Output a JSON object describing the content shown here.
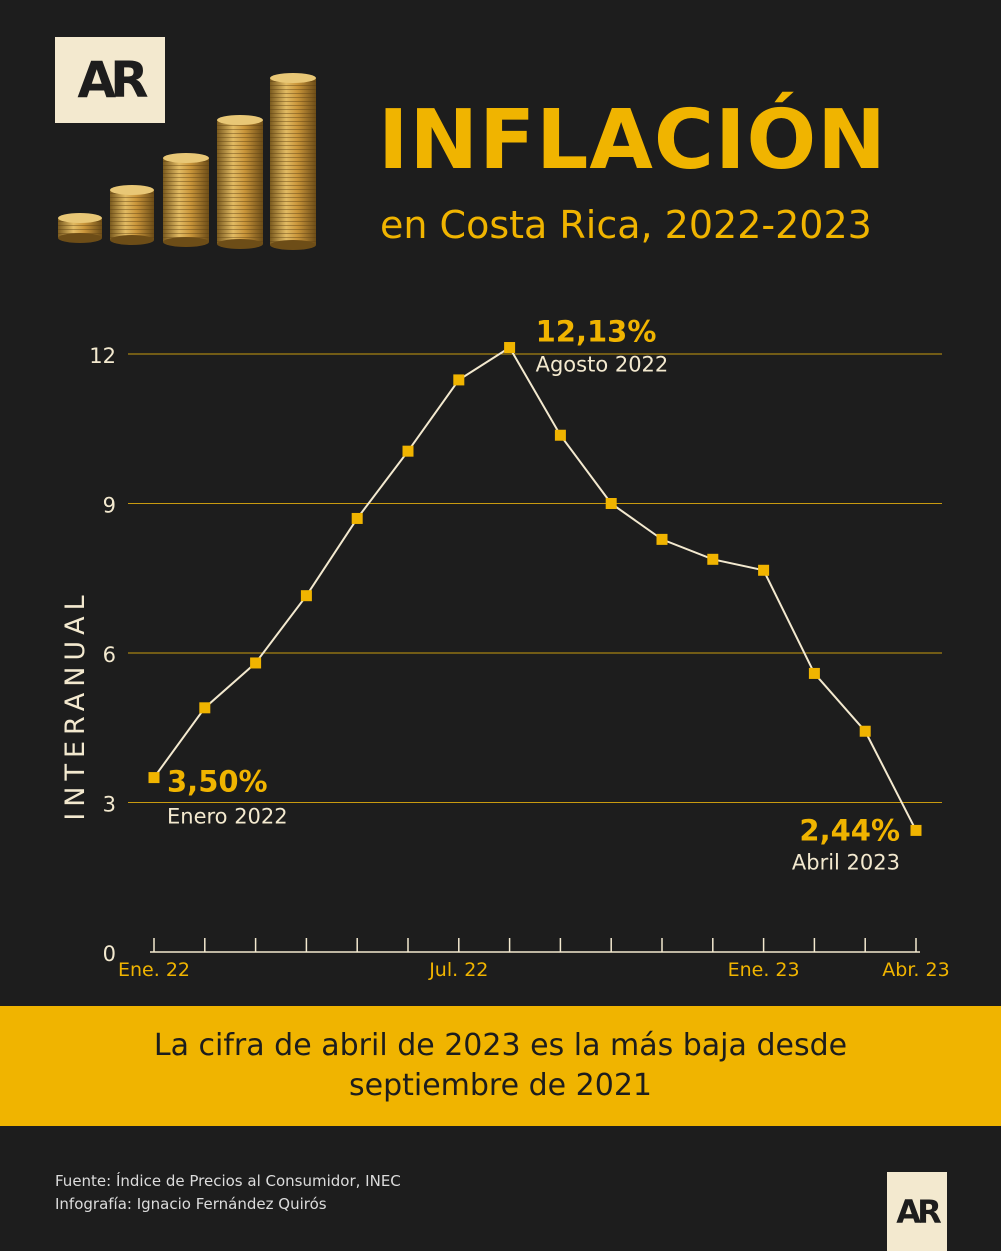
{
  "header": {
    "logo_text": "AR",
    "title": "INFLACIÓN",
    "subtitle": "en Costa Rica, 2022-2023"
  },
  "chart_data": {
    "type": "line",
    "ylabel": "INTERANUAL",
    "ylim": [
      0,
      12
    ],
    "yticks": [
      "0",
      "3",
      "6",
      "9",
      "12"
    ],
    "grid": true,
    "x_ticklabels": [
      {
        "index": 0,
        "label": "Ene. 22"
      },
      {
        "index": 6,
        "label": "Jul. 22"
      },
      {
        "index": 12,
        "label": "Ene. 23"
      },
      {
        "index": 15,
        "label": "Abr. 23"
      }
    ],
    "values": [
      3.5,
      4.9,
      5.8,
      7.15,
      8.7,
      10.05,
      11.48,
      12.13,
      10.37,
      9.0,
      8.28,
      7.88,
      7.66,
      5.59,
      4.43,
      2.44
    ],
    "annotations": [
      {
        "index": 0,
        "value": "3,50%",
        "label": "Enero 2022"
      },
      {
        "index": 7,
        "value": "12,13%",
        "label": "Agosto 2022"
      },
      {
        "index": 15,
        "value": "2,44%",
        "label": "Abril 2023"
      }
    ],
    "colors": {
      "line": "#f3e9cf",
      "marker": "#f0b400",
      "grid": "#c89a10",
      "text": "#f3e9cf",
      "accent": "#f0b400"
    }
  },
  "banner": {
    "text": "La cifra de abril de 2023 es la más baja desde septiembre de 2021"
  },
  "footer": {
    "source": "Fuente: Índice de Precios al Consumidor, INEC",
    "credit": "Infografía: Ignacio Fernández Quirós",
    "logo_text": "AR"
  }
}
